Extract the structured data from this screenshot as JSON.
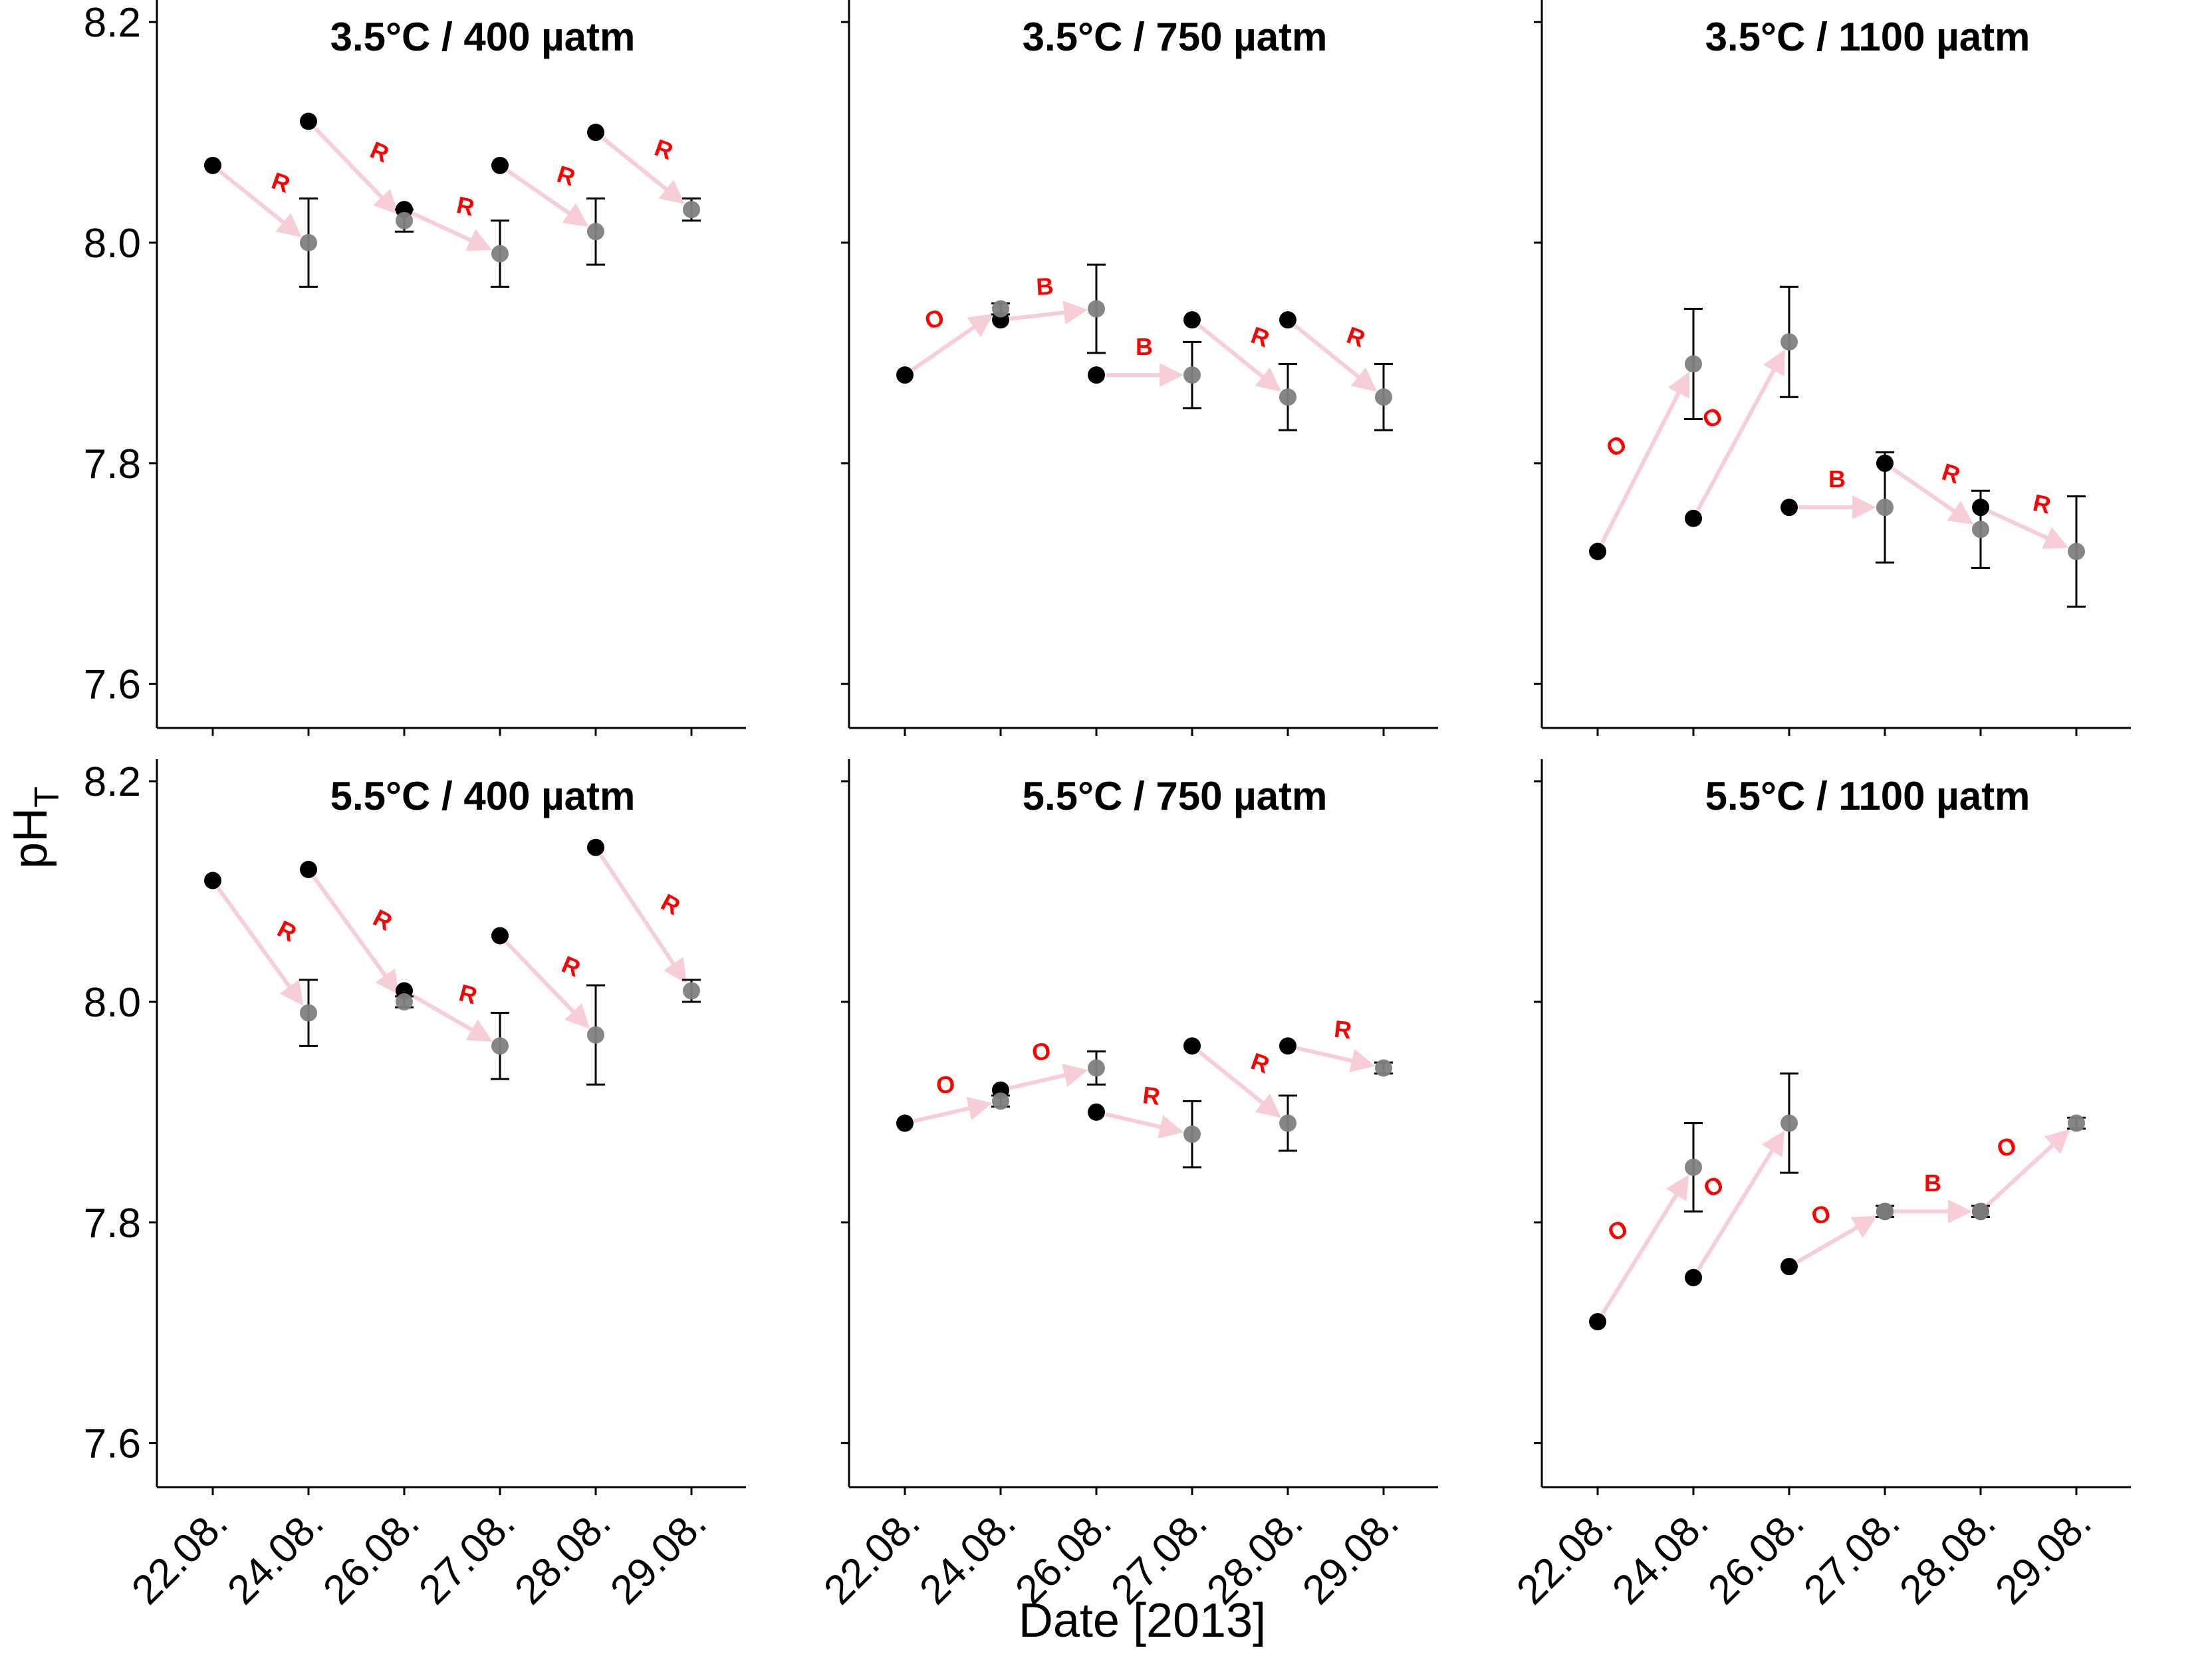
{
  "chart_data": {
    "type": "scatter",
    "xlabel": "Date [2013]",
    "ylabel": "pHT",
    "ylabel_main": "pH",
    "ylabel_sub": "T",
    "categories": [
      "22.08.",
      "24.08.",
      "26.08.",
      "27.08.",
      "28.08.",
      "29.08."
    ],
    "ylim": [
      7.56,
      8.22
    ],
    "yticks": [
      7.6,
      7.8,
      8.0,
      8.2
    ],
    "ytick_labels": [
      "7.6",
      "7.8",
      "8.0",
      "8.2"
    ],
    "colors": {
      "start_point": "#000000",
      "end_point": "#7f7f7f",
      "arrow": "#f7cdd7",
      "label": "#ff0000",
      "axis": "#000000"
    },
    "panels": [
      {
        "title": "3.5°C / 400 µatm",
        "start_values": [
          8.07,
          8.11,
          8.03,
          8.07,
          8.1,
          null
        ],
        "end_values": [
          null,
          8.0,
          8.02,
          7.99,
          8.01,
          8.03
        ],
        "end_error": [
          null,
          0.04,
          0.01,
          0.03,
          0.03,
          0.01
        ],
        "transitions": [
          {
            "from": 0,
            "to": 1,
            "label": "R"
          },
          {
            "from": 1,
            "to": 2,
            "label": "R"
          },
          {
            "from": 2,
            "to": 3,
            "label": "R"
          },
          {
            "from": 3,
            "to": 4,
            "label": "R"
          },
          {
            "from": 4,
            "to": 5,
            "label": "R"
          }
        ]
      },
      {
        "title": "3.5°C / 750 µatm",
        "start_values": [
          7.88,
          7.93,
          7.88,
          7.93,
          7.93,
          null
        ],
        "end_values": [
          null,
          7.94,
          7.94,
          7.88,
          7.86,
          7.86
        ],
        "end_error": [
          null,
          0.005,
          0.04,
          0.03,
          0.03,
          0.03
        ],
        "transitions": [
          {
            "from": 0,
            "to": 1,
            "label": "O"
          },
          {
            "from": 1,
            "to": 2,
            "label": "B"
          },
          {
            "from": 2,
            "to": 3,
            "label": "B"
          },
          {
            "from": 3,
            "to": 4,
            "label": "R"
          },
          {
            "from": 4,
            "to": 5,
            "label": "R"
          }
        ]
      },
      {
        "title": "3.5°C / 1100 µatm",
        "start_values": [
          7.72,
          7.75,
          7.76,
          7.8,
          7.76,
          null
        ],
        "end_values": [
          null,
          7.89,
          7.91,
          7.76,
          7.74,
          7.72
        ],
        "end_error": [
          null,
          0.05,
          0.05,
          0.05,
          0.035,
          0.05
        ],
        "transitions": [
          {
            "from": 0,
            "to": 1,
            "label": "O"
          },
          {
            "from": 1,
            "to": 2,
            "label": "O"
          },
          {
            "from": 2,
            "to": 3,
            "label": "B"
          },
          {
            "from": 3,
            "to": 4,
            "label": "R"
          },
          {
            "from": 4,
            "to": 5,
            "label": "R"
          }
        ]
      },
      {
        "title": "5.5°C / 400 µatm",
        "start_values": [
          8.11,
          8.12,
          8.01,
          8.06,
          8.14,
          null
        ],
        "end_values": [
          null,
          7.99,
          8.0,
          7.96,
          7.97,
          8.01
        ],
        "end_error": [
          null,
          0.03,
          0.005,
          0.03,
          0.045,
          0.01
        ],
        "transitions": [
          {
            "from": 0,
            "to": 1,
            "label": "R"
          },
          {
            "from": 1,
            "to": 2,
            "label": "R"
          },
          {
            "from": 2,
            "to": 3,
            "label": "R"
          },
          {
            "from": 3,
            "to": 4,
            "label": "R"
          },
          {
            "from": 4,
            "to": 5,
            "label": "R"
          }
        ]
      },
      {
        "title": "5.5°C / 750 µatm",
        "start_values": [
          7.89,
          7.92,
          7.9,
          7.96,
          7.96,
          null
        ],
        "end_values": [
          null,
          7.91,
          7.94,
          7.88,
          7.89,
          7.94
        ],
        "end_error": [
          null,
          0.005,
          0.015,
          0.03,
          0.025,
          0.005
        ],
        "transitions": [
          {
            "from": 0,
            "to": 1,
            "label": "O"
          },
          {
            "from": 1,
            "to": 2,
            "label": "O"
          },
          {
            "from": 2,
            "to": 3,
            "label": "R"
          },
          {
            "from": 3,
            "to": 4,
            "label": "R"
          },
          {
            "from": 4,
            "to": 5,
            "label": "R"
          }
        ]
      },
      {
        "title": "5.5°C / 1100 µatm",
        "start_values": [
          7.71,
          7.75,
          7.76,
          7.81,
          7.81,
          null
        ],
        "end_values": [
          null,
          7.85,
          7.89,
          7.81,
          7.81,
          7.89
        ],
        "end_error": [
          null,
          0.04,
          0.045,
          0.005,
          0.005,
          0.005
        ],
        "transitions": [
          {
            "from": 0,
            "to": 1,
            "label": "O"
          },
          {
            "from": 1,
            "to": 2,
            "label": "O"
          },
          {
            "from": 2,
            "to": 3,
            "label": "O"
          },
          {
            "from": 3,
            "to": 4,
            "label": "B"
          },
          {
            "from": 4,
            "to": 5,
            "label": "O"
          }
        ]
      }
    ]
  }
}
